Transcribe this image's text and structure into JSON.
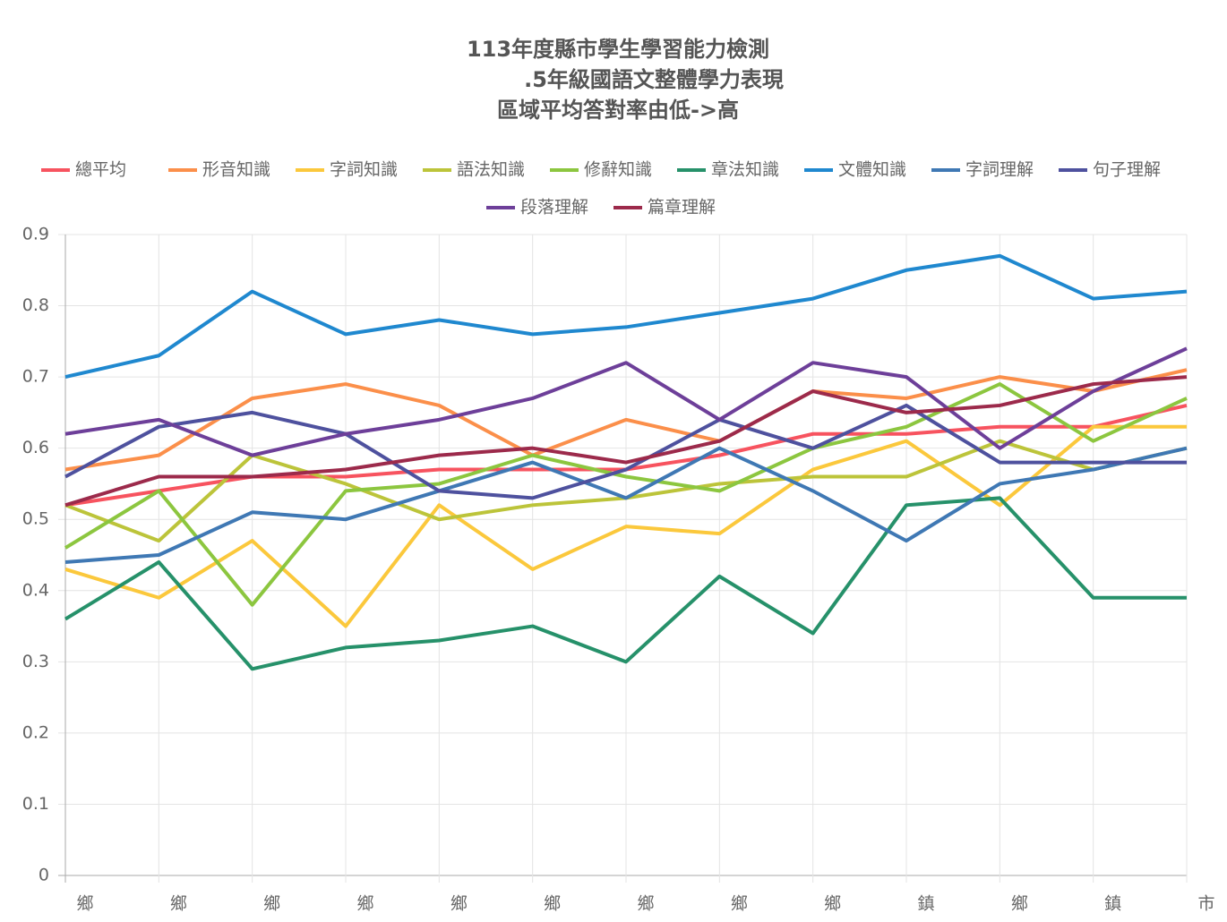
{
  "chart_data": {
    "type": "line",
    "title": [
      "113年度縣市學生學習能力檢測",
      ".5年級國語文整體學力表現",
      "區域平均答對率由低->高"
    ],
    "categories": [
      "鄉",
      "鄉",
      "鄉",
      "鄉",
      "鄉",
      "鄉",
      "鄉",
      "鄉",
      "鄉",
      "鎮",
      "鄉",
      "鎮",
      "市"
    ],
    "ylim": [
      0,
      0.9
    ],
    "yticks": [
      0,
      0.1,
      0.2,
      0.3,
      0.4,
      0.5,
      0.6,
      0.7,
      0.8,
      0.9
    ],
    "grid": true,
    "legend": "top",
    "series": [
      {
        "name": "總平均",
        "color": "#f7535f",
        "values": [
          0.52,
          0.54,
          0.56,
          0.56,
          0.57,
          0.57,
          0.57,
          0.59,
          0.62,
          0.62,
          0.63,
          0.63,
          0.66
        ]
      },
      {
        "name": "形音知識",
        "color": "#fb8f4a",
        "values": [
          0.57,
          0.59,
          0.67,
          0.69,
          0.66,
          0.59,
          0.64,
          0.61,
          0.68,
          0.67,
          0.7,
          0.68,
          0.71
        ]
      },
      {
        "name": "字詞知識",
        "color": "#fbc83c",
        "values": [
          0.43,
          0.39,
          0.47,
          0.35,
          0.52,
          0.43,
          0.49,
          0.48,
          0.57,
          0.61,
          0.52,
          0.63,
          0.63
        ]
      },
      {
        "name": "語法知識",
        "color": "#bcc43a",
        "values": [
          0.52,
          0.47,
          0.59,
          0.55,
          0.5,
          0.52,
          0.53,
          0.55,
          0.56,
          0.56,
          0.61,
          0.57,
          0.6
        ]
      },
      {
        "name": "修辭知識",
        "color": "#8cc63f",
        "values": [
          0.46,
          0.54,
          0.38,
          0.54,
          0.55,
          0.59,
          0.56,
          0.54,
          0.6,
          0.63,
          0.69,
          0.61,
          0.67
        ]
      },
      {
        "name": "章法知識",
        "color": "#26916a",
        "values": [
          0.36,
          0.44,
          0.29,
          0.32,
          0.33,
          0.35,
          0.3,
          0.42,
          0.34,
          0.52,
          0.53,
          0.39,
          0.39
        ]
      },
      {
        "name": "文體知識",
        "color": "#1f88cf",
        "values": [
          0.7,
          0.73,
          0.82,
          0.76,
          0.78,
          0.76,
          0.77,
          0.79,
          0.81,
          0.85,
          0.87,
          0.81,
          0.82
        ]
      },
      {
        "name": "字詞理解",
        "color": "#3f78b4",
        "values": [
          0.44,
          0.45,
          0.51,
          0.5,
          0.54,
          0.58,
          0.53,
          0.6,
          0.54,
          0.47,
          0.55,
          0.57,
          0.6
        ]
      },
      {
        "name": "句子理解",
        "color": "#4e519e",
        "values": [
          0.56,
          0.63,
          0.65,
          0.62,
          0.54,
          0.53,
          0.57,
          0.64,
          0.6,
          0.66,
          0.58,
          0.58,
          0.58
        ]
      },
      {
        "name": "段落理解",
        "color": "#6d3f99",
        "values": [
          0.62,
          0.64,
          0.59,
          0.62,
          0.64,
          0.67,
          0.72,
          0.64,
          0.72,
          0.7,
          0.6,
          0.68,
          0.74
        ]
      },
      {
        "name": "篇章理解",
        "color": "#9c2a4b",
        "values": [
          0.52,
          0.56,
          0.56,
          0.57,
          0.59,
          0.6,
          0.58,
          0.61,
          0.68,
          0.65,
          0.66,
          0.69,
          0.7
        ]
      }
    ]
  }
}
